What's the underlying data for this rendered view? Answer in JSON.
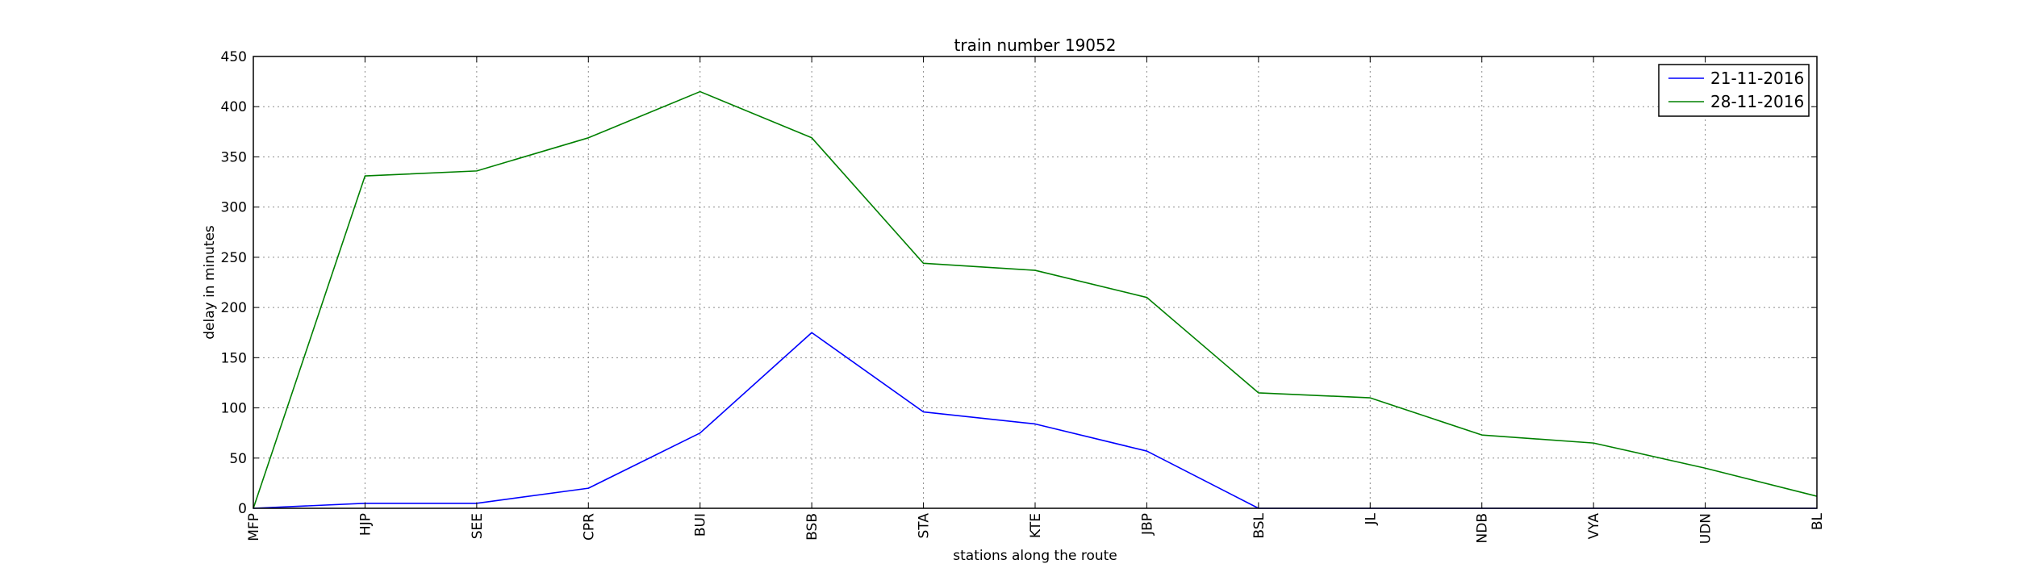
{
  "chart_data": {
    "type": "line",
    "title": "train number 19052",
    "xlabel": "stations along the route",
    "ylabel": "delay in minutes",
    "categories": [
      "MFP",
      "HJP",
      "SEE",
      "CPR",
      "BUI",
      "BSB",
      "STA",
      "KTE",
      "JBP",
      "BSL",
      "JL",
      "NDB",
      "VYA",
      "UDN",
      "BL"
    ],
    "ylim": [
      0,
      450
    ],
    "yticks": [
      0,
      50,
      100,
      150,
      200,
      250,
      300,
      350,
      400,
      450
    ],
    "grid": true,
    "legend_position": "top-right",
    "series": [
      {
        "name": "21-11-2016",
        "color": "#0000ff",
        "values": [
          0,
          5,
          5,
          20,
          75,
          175,
          96,
          84,
          57,
          0,
          0,
          0,
          0,
          0,
          0
        ]
      },
      {
        "name": "28-11-2016",
        "color": "#008000",
        "values": [
          0,
          331,
          336,
          369,
          415,
          369,
          244,
          237,
          210,
          115,
          110,
          73,
          65,
          40,
          12
        ]
      }
    ]
  }
}
